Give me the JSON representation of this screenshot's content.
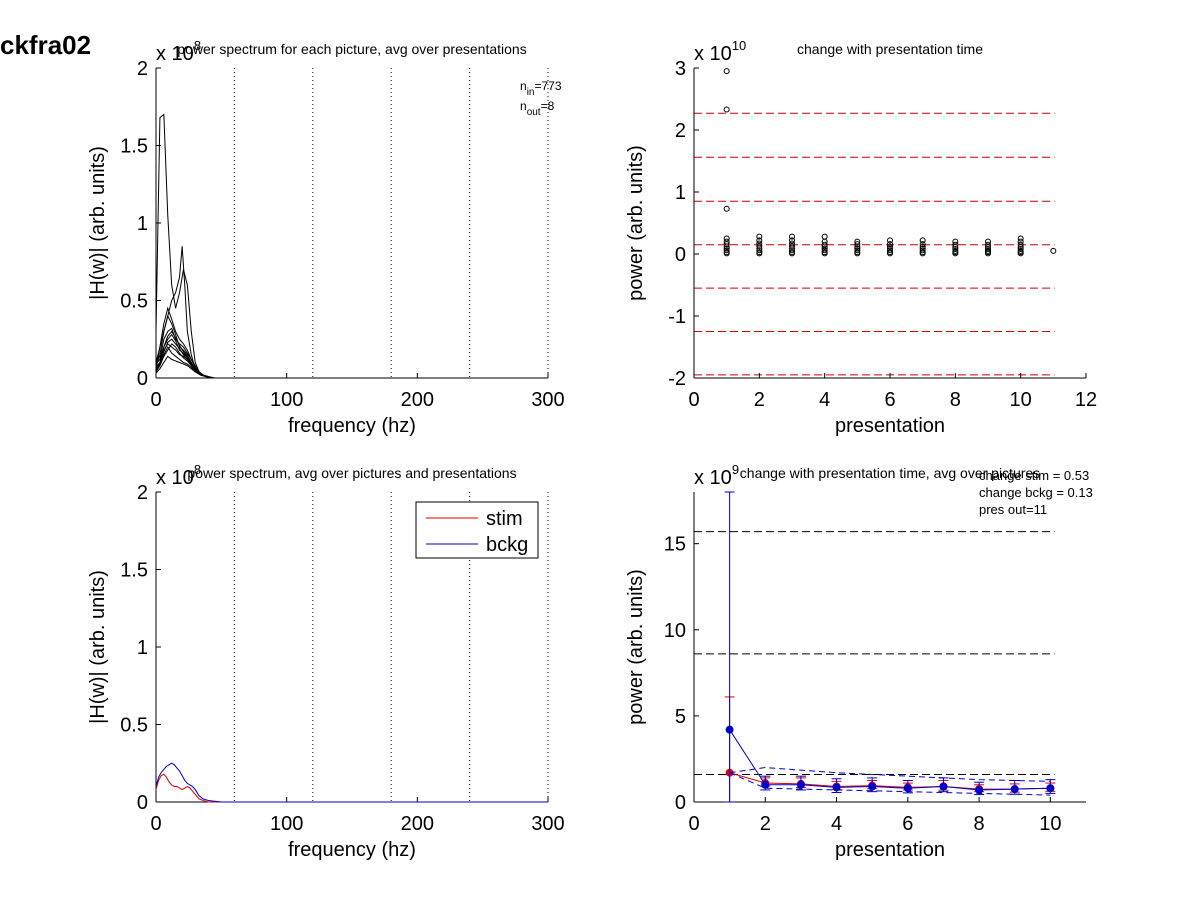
{
  "figure": {
    "title": "ckfra02"
  },
  "chart_data": [
    {
      "id": "spectrum-each",
      "type": "line",
      "title": "power spectrum for each picture, avg over presentations",
      "xlabel": "frequency (hz)",
      "ylabel": "|H(w)| (arb. units)",
      "exponent": "8",
      "xlim": [
        0,
        300
      ],
      "ylim": [
        0,
        2
      ],
      "xticks": [
        0,
        100,
        200,
        300
      ],
      "yticks": [
        0,
        0.5,
        1,
        1.5,
        2
      ],
      "ytick_labels": [
        "0",
        "0.5",
        "1",
        "1.5",
        "2"
      ],
      "vlines": [
        60,
        120,
        180,
        240,
        300
      ],
      "annotation": {
        "n_in_sub": "in",
        "n_in_val": "=773",
        "n_out_sub": "out",
        "n_out_val": "=8"
      },
      "series": [
        {
          "x": [
            0,
            3,
            6,
            9,
            12,
            15,
            18,
            21,
            24,
            27,
            30,
            33,
            36,
            40,
            45,
            50,
            60,
            80,
            100,
            150,
            200,
            300
          ],
          "values": [
            0.3,
            1.68,
            1.7,
            1.05,
            0.6,
            0.45,
            0.55,
            0.7,
            0.6,
            0.3,
            0.1,
            0.04,
            0.02,
            0.01,
            0,
            0,
            0,
            0,
            0,
            0,
            0,
            0
          ]
        },
        {
          "x": [
            0,
            3,
            6,
            9,
            12,
            15,
            18,
            20,
            22,
            24,
            27,
            30,
            34,
            38,
            42,
            50,
            60,
            100,
            300
          ],
          "values": [
            0.1,
            0.2,
            0.3,
            0.4,
            0.5,
            0.55,
            0.65,
            0.85,
            0.6,
            0.3,
            0.15,
            0.06,
            0.02,
            0.01,
            0,
            0,
            0,
            0,
            0
          ]
        },
        {
          "x": [
            0,
            3,
            6,
            9,
            12,
            15,
            18,
            21,
            24,
            27,
            30,
            34,
            38,
            42,
            50,
            100,
            300
          ],
          "values": [
            0.05,
            0.2,
            0.35,
            0.45,
            0.38,
            0.3,
            0.25,
            0.22,
            0.18,
            0.12,
            0.08,
            0.03,
            0.01,
            0,
            0,
            0,
            0
          ]
        },
        {
          "x": [
            0,
            3,
            6,
            9,
            12,
            15,
            18,
            21,
            24,
            27,
            30,
            34,
            38,
            42,
            50,
            100,
            300
          ],
          "values": [
            0.08,
            0.15,
            0.3,
            0.4,
            0.35,
            0.28,
            0.2,
            0.18,
            0.15,
            0.1,
            0.06,
            0.02,
            0.01,
            0,
            0,
            0,
            0
          ]
        },
        {
          "x": [
            0,
            3,
            6,
            9,
            12,
            15,
            18,
            21,
            24,
            27,
            30,
            34,
            38,
            42,
            50,
            100,
            300
          ],
          "values": [
            0.1,
            0.12,
            0.25,
            0.3,
            0.32,
            0.25,
            0.22,
            0.2,
            0.16,
            0.12,
            0.07,
            0.03,
            0.01,
            0,
            0,
            0,
            0
          ]
        },
        {
          "x": [
            0,
            3,
            6,
            9,
            12,
            15,
            18,
            21,
            24,
            27,
            30,
            34,
            38,
            42,
            50,
            100,
            300
          ],
          "values": [
            0.06,
            0.1,
            0.2,
            0.25,
            0.28,
            0.24,
            0.18,
            0.16,
            0.13,
            0.1,
            0.06,
            0.02,
            0.01,
            0,
            0,
            0,
            0
          ]
        },
        {
          "x": [
            0,
            3,
            6,
            9,
            12,
            15,
            18,
            21,
            24,
            27,
            30,
            34,
            38,
            42,
            50,
            100,
            300
          ],
          "values": [
            0.12,
            0.14,
            0.18,
            0.22,
            0.2,
            0.18,
            0.15,
            0.14,
            0.12,
            0.09,
            0.05,
            0.02,
            0.01,
            0,
            0,
            0,
            0
          ]
        },
        {
          "x": [
            0,
            3,
            6,
            9,
            12,
            15,
            18,
            21,
            24,
            27,
            30,
            34,
            38,
            42,
            50,
            100,
            300
          ],
          "values": [
            0.04,
            0.08,
            0.14,
            0.18,
            0.22,
            0.2,
            0.16,
            0.13,
            0.11,
            0.08,
            0.05,
            0.02,
            0.01,
            0,
            0,
            0,
            0
          ]
        },
        {
          "x": [
            0,
            3,
            6,
            9,
            12,
            15,
            18,
            21,
            24,
            27,
            30,
            34,
            38,
            42,
            50,
            100,
            300
          ],
          "values": [
            0.07,
            0.1,
            0.15,
            0.2,
            0.16,
            0.14,
            0.12,
            0.1,
            0.09,
            0.07,
            0.04,
            0.02,
            0.01,
            0,
            0,
            0,
            0
          ]
        },
        {
          "x": [
            0,
            3,
            6,
            9,
            12,
            15,
            18,
            21,
            24,
            27,
            30,
            34,
            38,
            42,
            50,
            100,
            300
          ],
          "values": [
            0.03,
            0.06,
            0.1,
            0.14,
            0.12,
            0.11,
            0.1,
            0.09,
            0.08,
            0.06,
            0.04,
            0.02,
            0.01,
            0,
            0,
            0,
            0
          ]
        },
        {
          "x": [
            0,
            3,
            6,
            9,
            12,
            15,
            18,
            21,
            24,
            27,
            30,
            34,
            38,
            42,
            50,
            100,
            300
          ],
          "values": [
            0.09,
            0.12,
            0.2,
            0.27,
            0.3,
            0.26,
            0.21,
            0.17,
            0.14,
            0.1,
            0.05,
            0.02,
            0.01,
            0,
            0,
            0,
            0
          ]
        },
        {
          "x": [
            0,
            3,
            6,
            9,
            12,
            15,
            18,
            21,
            24,
            27,
            30,
            34,
            38,
            42,
            50,
            100,
            300
          ],
          "values": [
            0.05,
            0.09,
            0.17,
            0.23,
            0.25,
            0.22,
            0.19,
            0.15,
            0.12,
            0.09,
            0.05,
            0.02,
            0.01,
            0,
            0,
            0,
            0
          ]
        }
      ]
    },
    {
      "id": "change-presentation",
      "type": "scatter",
      "title": "change with presentation time",
      "xlabel": "presentation",
      "ylabel": "power (arb. units)",
      "exponent": "10",
      "xlim": [
        0,
        12
      ],
      "ylim": [
        -2,
        3
      ],
      "xticks": [
        0,
        2,
        4,
        6,
        8,
        10,
        12
      ],
      "yticks": [
        -2,
        -1,
        0,
        1,
        2,
        3
      ],
      "ytick_labels": [
        "-2",
        "-1",
        "0",
        "1",
        "2",
        "3"
      ],
      "hlines": [
        2.27,
        1.56,
        0.85,
        0.15,
        -0.55,
        -1.25,
        -1.95
      ],
      "hline_color": "#cc0000",
      "points": {
        "x": [
          1,
          1,
          1,
          1,
          1,
          1,
          1,
          1,
          1,
          1,
          1,
          2,
          2,
          2,
          2,
          2,
          2,
          2,
          2,
          3,
          3,
          3,
          3,
          3,
          3,
          3,
          3,
          4,
          4,
          4,
          4,
          4,
          4,
          4,
          4,
          5,
          5,
          5,
          5,
          5,
          5,
          5,
          6,
          6,
          6,
          6,
          6,
          6,
          6,
          7,
          7,
          7,
          7,
          7,
          7,
          7,
          8,
          8,
          8,
          8,
          8,
          8,
          8,
          9,
          9,
          9,
          9,
          9,
          9,
          9,
          10,
          10,
          10,
          10,
          10,
          10,
          10,
          10,
          11
        ],
        "values": [
          2.95,
          2.33,
          0.73,
          0.25,
          0.2,
          0.16,
          0.12,
          0.09,
          0.06,
          0.03,
          0.01,
          0.28,
          0.22,
          0.17,
          0.13,
          0.09,
          0.06,
          0.03,
          0.01,
          0.28,
          0.22,
          0.17,
          0.13,
          0.09,
          0.06,
          0.03,
          0.01,
          0.28,
          0.2,
          0.15,
          0.12,
          0.09,
          0.06,
          0.03,
          0.01,
          0.2,
          0.16,
          0.12,
          0.09,
          0.06,
          0.03,
          0.01,
          0.22,
          0.16,
          0.12,
          0.09,
          0.06,
          0.03,
          0.01,
          0.22,
          0.16,
          0.12,
          0.09,
          0.06,
          0.03,
          0.01,
          0.2,
          0.15,
          0.11,
          0.08,
          0.05,
          0.03,
          0.01,
          0.2,
          0.15,
          0.11,
          0.08,
          0.05,
          0.03,
          0.01,
          0.25,
          0.2,
          0.15,
          0.11,
          0.08,
          0.05,
          0.03,
          0.01,
          0.05
        ]
      }
    },
    {
      "id": "spectrum-avg",
      "type": "line",
      "title": "power spectrum, avg over pictures and presentations",
      "xlabel": "frequency (hz)",
      "ylabel": "|H(w)| (arb. units)",
      "exponent": "8",
      "xlim": [
        0,
        300
      ],
      "ylim": [
        0,
        2
      ],
      "xticks": [
        0,
        100,
        200,
        300
      ],
      "yticks": [
        0,
        0.5,
        1,
        1.5,
        2
      ],
      "ytick_labels": [
        "0",
        "0.5",
        "1",
        "1.5",
        "2"
      ],
      "vlines": [
        60,
        120,
        180,
        240,
        300
      ],
      "legend": "top-right",
      "series": [
        {
          "name": "stim",
          "color": "#e00000",
          "x": [
            0,
            2,
            4,
            6,
            8,
            10,
            12,
            14,
            16,
            18,
            20,
            22,
            24,
            26,
            28,
            30,
            33,
            36,
            40,
            50,
            100,
            200,
            300
          ],
          "values": [
            0.08,
            0.14,
            0.17,
            0.18,
            0.16,
            0.13,
            0.11,
            0.1,
            0.1,
            0.09,
            0.08,
            0.09,
            0.1,
            0.09,
            0.07,
            0.05,
            0.02,
            0.01,
            0,
            0,
            0,
            0,
            0
          ]
        },
        {
          "name": "bckg",
          "color": "#0000cc",
          "x": [
            0,
            2,
            4,
            6,
            8,
            10,
            12,
            14,
            16,
            18,
            20,
            22,
            24,
            26,
            28,
            30,
            33,
            36,
            40,
            50,
            100,
            200,
            300
          ],
          "values": [
            0.1,
            0.16,
            0.19,
            0.21,
            0.23,
            0.24,
            0.25,
            0.24,
            0.22,
            0.2,
            0.17,
            0.14,
            0.12,
            0.11,
            0.1,
            0.08,
            0.04,
            0.02,
            0.01,
            0,
            0,
            0,
            0
          ]
        }
      ]
    },
    {
      "id": "change-avg",
      "type": "line",
      "title": "change with presentation time, avg over pictures",
      "xlabel": "presentation",
      "ylabel": "power (arb. units)",
      "exponent": "9",
      "xlim": [
        0,
        11
      ],
      "ylim": [
        0,
        18
      ],
      "xticks": [
        0,
        2,
        4,
        6,
        8,
        10
      ],
      "yticks": [
        0,
        5,
        10,
        15
      ],
      "ytick_labels": [
        "0",
        "5",
        "10",
        "15"
      ],
      "hlines": [
        15.7,
        8.6,
        1.6
      ],
      "hline_color": "#000000",
      "stats": [
        "change stim = 0.53",
        "change bckg = 0.13",
        "pres out=11"
      ],
      "series": [
        {
          "name": "stim",
          "color": "#e00000",
          "x": [
            1,
            2,
            3,
            4,
            5,
            6,
            7,
            8,
            9,
            10
          ],
          "values": [
            1.7,
            1.1,
            1.05,
            0.9,
            0.95,
            0.85,
            0.9,
            0.75,
            0.75,
            0.8
          ],
          "err": [
            4.4,
            0.3,
            0.35,
            0.3,
            0.3,
            0.25,
            0.35,
            0.25,
            0.3,
            0.3
          ]
        },
        {
          "name": "bckg",
          "color": "#0000cc",
          "x": [
            1,
            2,
            3,
            4,
            5,
            6,
            7,
            8,
            9,
            10
          ],
          "values": [
            4.2,
            1.0,
            1.0,
            0.85,
            0.9,
            0.8,
            0.9,
            0.7,
            0.75,
            0.8
          ],
          "err": [
            13.8,
            0.5,
            0.5,
            0.5,
            0.5,
            0.45,
            0.5,
            0.45,
            0.5,
            0.5
          ]
        },
        {
          "name": "",
          "color": "#0000cc",
          "dash": true,
          "x": [
            1,
            2,
            3,
            4,
            5,
            6,
            7,
            8,
            9,
            10
          ],
          "values": [
            1.7,
            2.0,
            1.85,
            1.7,
            1.6,
            1.5,
            1.4,
            1.3,
            1.25,
            1.2
          ]
        },
        {
          "name": "",
          "color": "#0000cc",
          "dash": true,
          "x": [
            1,
            2,
            3,
            4,
            5,
            6,
            7,
            8,
            9,
            10
          ],
          "values": [
            1.7,
            0.8,
            0.75,
            0.7,
            0.65,
            0.6,
            0.55,
            0.5,
            0.45,
            0.4
          ]
        }
      ]
    }
  ]
}
